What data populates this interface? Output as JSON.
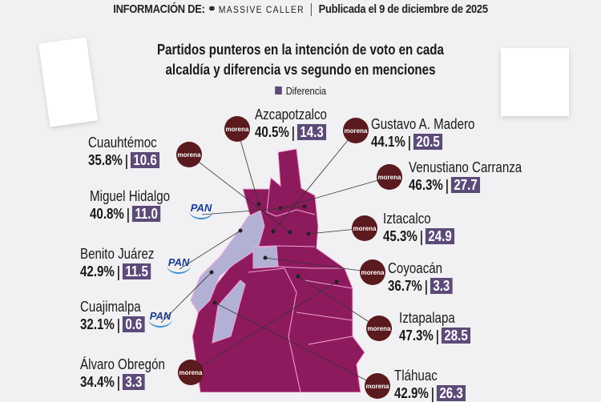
{
  "header": {
    "info_label": "INFORMACIÓN DE:",
    "source_logo": "MASSIVE CALLER",
    "published": "Publicada el 9 de diciembre de 2025"
  },
  "chart_data": {
    "type": "map",
    "title_line1": "Partidos punteros en la intención de voto en cada",
    "title_line2": "alcaldía y diferencia vs segundo en menciones",
    "legend": "Diferencia",
    "colors": {
      "morena": "#8e1a5e",
      "pan": "#b3b0d6",
      "diff": "#5c4a78"
    },
    "alcaldias": [
      {
        "name": "Azcapotzalco",
        "party": "morena",
        "pct": "40.5%",
        "diff": "14.3"
      },
      {
        "name": "Gustavo A. Madero",
        "party": "morena",
        "pct": "44.1%",
        "diff": "20.5"
      },
      {
        "name": "Cuauhtémoc",
        "party": "morena",
        "pct": "35.8%",
        "diff": "10.6"
      },
      {
        "name": "Venustiano Carranza",
        "party": "morena",
        "pct": "46.3%",
        "diff": "27.7"
      },
      {
        "name": "Miguel Hidalgo",
        "party": "PAN",
        "pct": "40.8%",
        "diff": "11.0"
      },
      {
        "name": "Iztacalco",
        "party": "morena",
        "pct": "45.3%",
        "diff": "24.9"
      },
      {
        "name": "Benito Juárez",
        "party": "PAN",
        "pct": "42.9%",
        "diff": "11.5"
      },
      {
        "name": "Coyoacán",
        "party": "morena",
        "pct": "36.7%",
        "diff": "3.3"
      },
      {
        "name": "Cuajimalpa",
        "party": "PAN",
        "pct": "32.1%",
        "diff": "0.6"
      },
      {
        "name": "Iztapalapa",
        "party": "morena",
        "pct": "47.3%",
        "diff": "28.5"
      },
      {
        "name": "Álvaro Obregón",
        "party": "morena",
        "pct": "34.4%",
        "diff": "3.3"
      },
      {
        "name": "Tláhuac",
        "party": "morena",
        "pct": "42.9%",
        "diff": "26.3"
      }
    ]
  }
}
